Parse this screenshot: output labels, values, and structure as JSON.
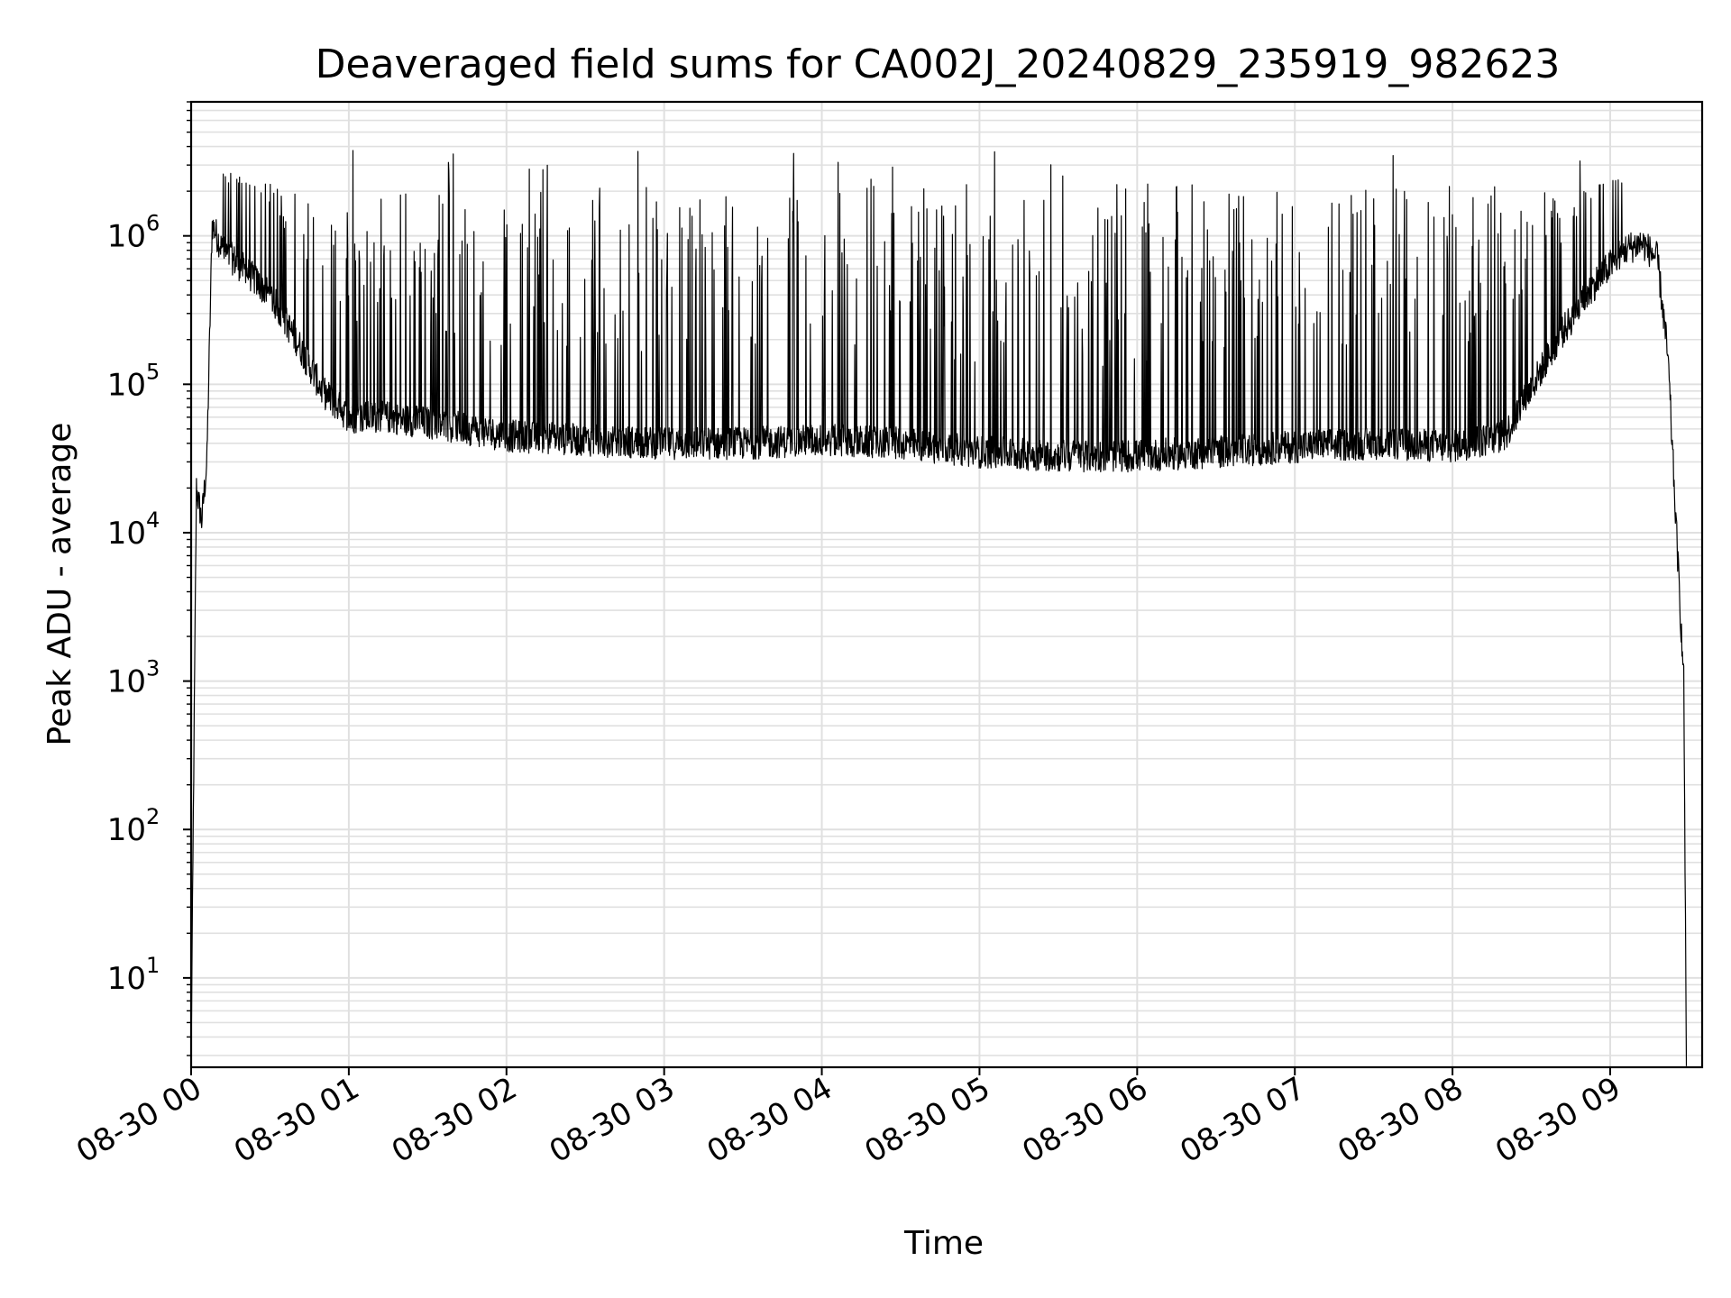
{
  "chart_data": {
    "type": "line",
    "title": "Deaveraged field sums for CA002J_20240829_235919_982623",
    "xlabel": "Time",
    "ylabel": "Peak ADU - average",
    "y_scale": "log",
    "ylim": [
      2.5,
      8000000
    ],
    "xlim": [
      "2024-08-30 00:00",
      "2024-08-30 09:35"
    ],
    "grid": true,
    "line_color": "#000000",
    "grid_color": "#e0e0e0",
    "x_ticks": [
      "08-30 00",
      "08-30 01",
      "08-30 02",
      "08-30 03",
      "08-30 04",
      "08-30 05",
      "08-30 06",
      "08-30 07",
      "08-30 08",
      "08-30 09"
    ],
    "y_ticks": [
      {
        "base": "10",
        "exp": "1"
      },
      {
        "base": "10",
        "exp": "2"
      },
      {
        "base": "10",
        "exp": "3"
      },
      {
        "base": "10",
        "exp": "4"
      },
      {
        "base": "10",
        "exp": "5"
      },
      {
        "base": "10",
        "exp": "6"
      }
    ],
    "series": [
      {
        "x": [
          "2024-08-30 00:00",
          "2024-08-30 00:02",
          "2024-08-30 00:04",
          "2024-08-30 00:06",
          "2024-08-30 00:08",
          "2024-08-30 00:12",
          "2024-08-30 00:20",
          "2024-08-30 00:30",
          "2024-08-30 00:40",
          "2024-08-30 00:50",
          "2024-08-30 01:00",
          "2024-08-30 01:15",
          "2024-08-30 01:30",
          "2024-08-30 01:45",
          "2024-08-30 02:00",
          "2024-08-30 02:30",
          "2024-08-30 03:00",
          "2024-08-30 03:30",
          "2024-08-30 04:00",
          "2024-08-30 04:30",
          "2024-08-30 05:00",
          "2024-08-30 05:30",
          "2024-08-30 06:00",
          "2024-08-30 06:30",
          "2024-08-30 07:00",
          "2024-08-30 07:30",
          "2024-08-30 08:00",
          "2024-08-30 08:20",
          "2024-08-30 08:40",
          "2024-08-30 08:55",
          "2024-08-30 09:05",
          "2024-08-30 09:12",
          "2024-08-30 09:18",
          "2024-08-30 09:22",
          "2024-08-30 09:25",
          "2024-08-30 09:28",
          "2024-08-30 09:29"
        ],
        "y": [
          3,
          20000,
          12000,
          30000,
          1200000,
          800000,
          600000,
          400000,
          200000,
          90000,
          60000,
          60000,
          55000,
          50000,
          45000,
          42000,
          40000,
          40000,
          42000,
          40000,
          35000,
          33000,
          33000,
          35000,
          38000,
          40000,
          38000,
          45000,
          200000,
          500000,
          800000,
          900000,
          700000,
          150000,
          12000,
          1000,
          3
        ]
      }
    ]
  }
}
